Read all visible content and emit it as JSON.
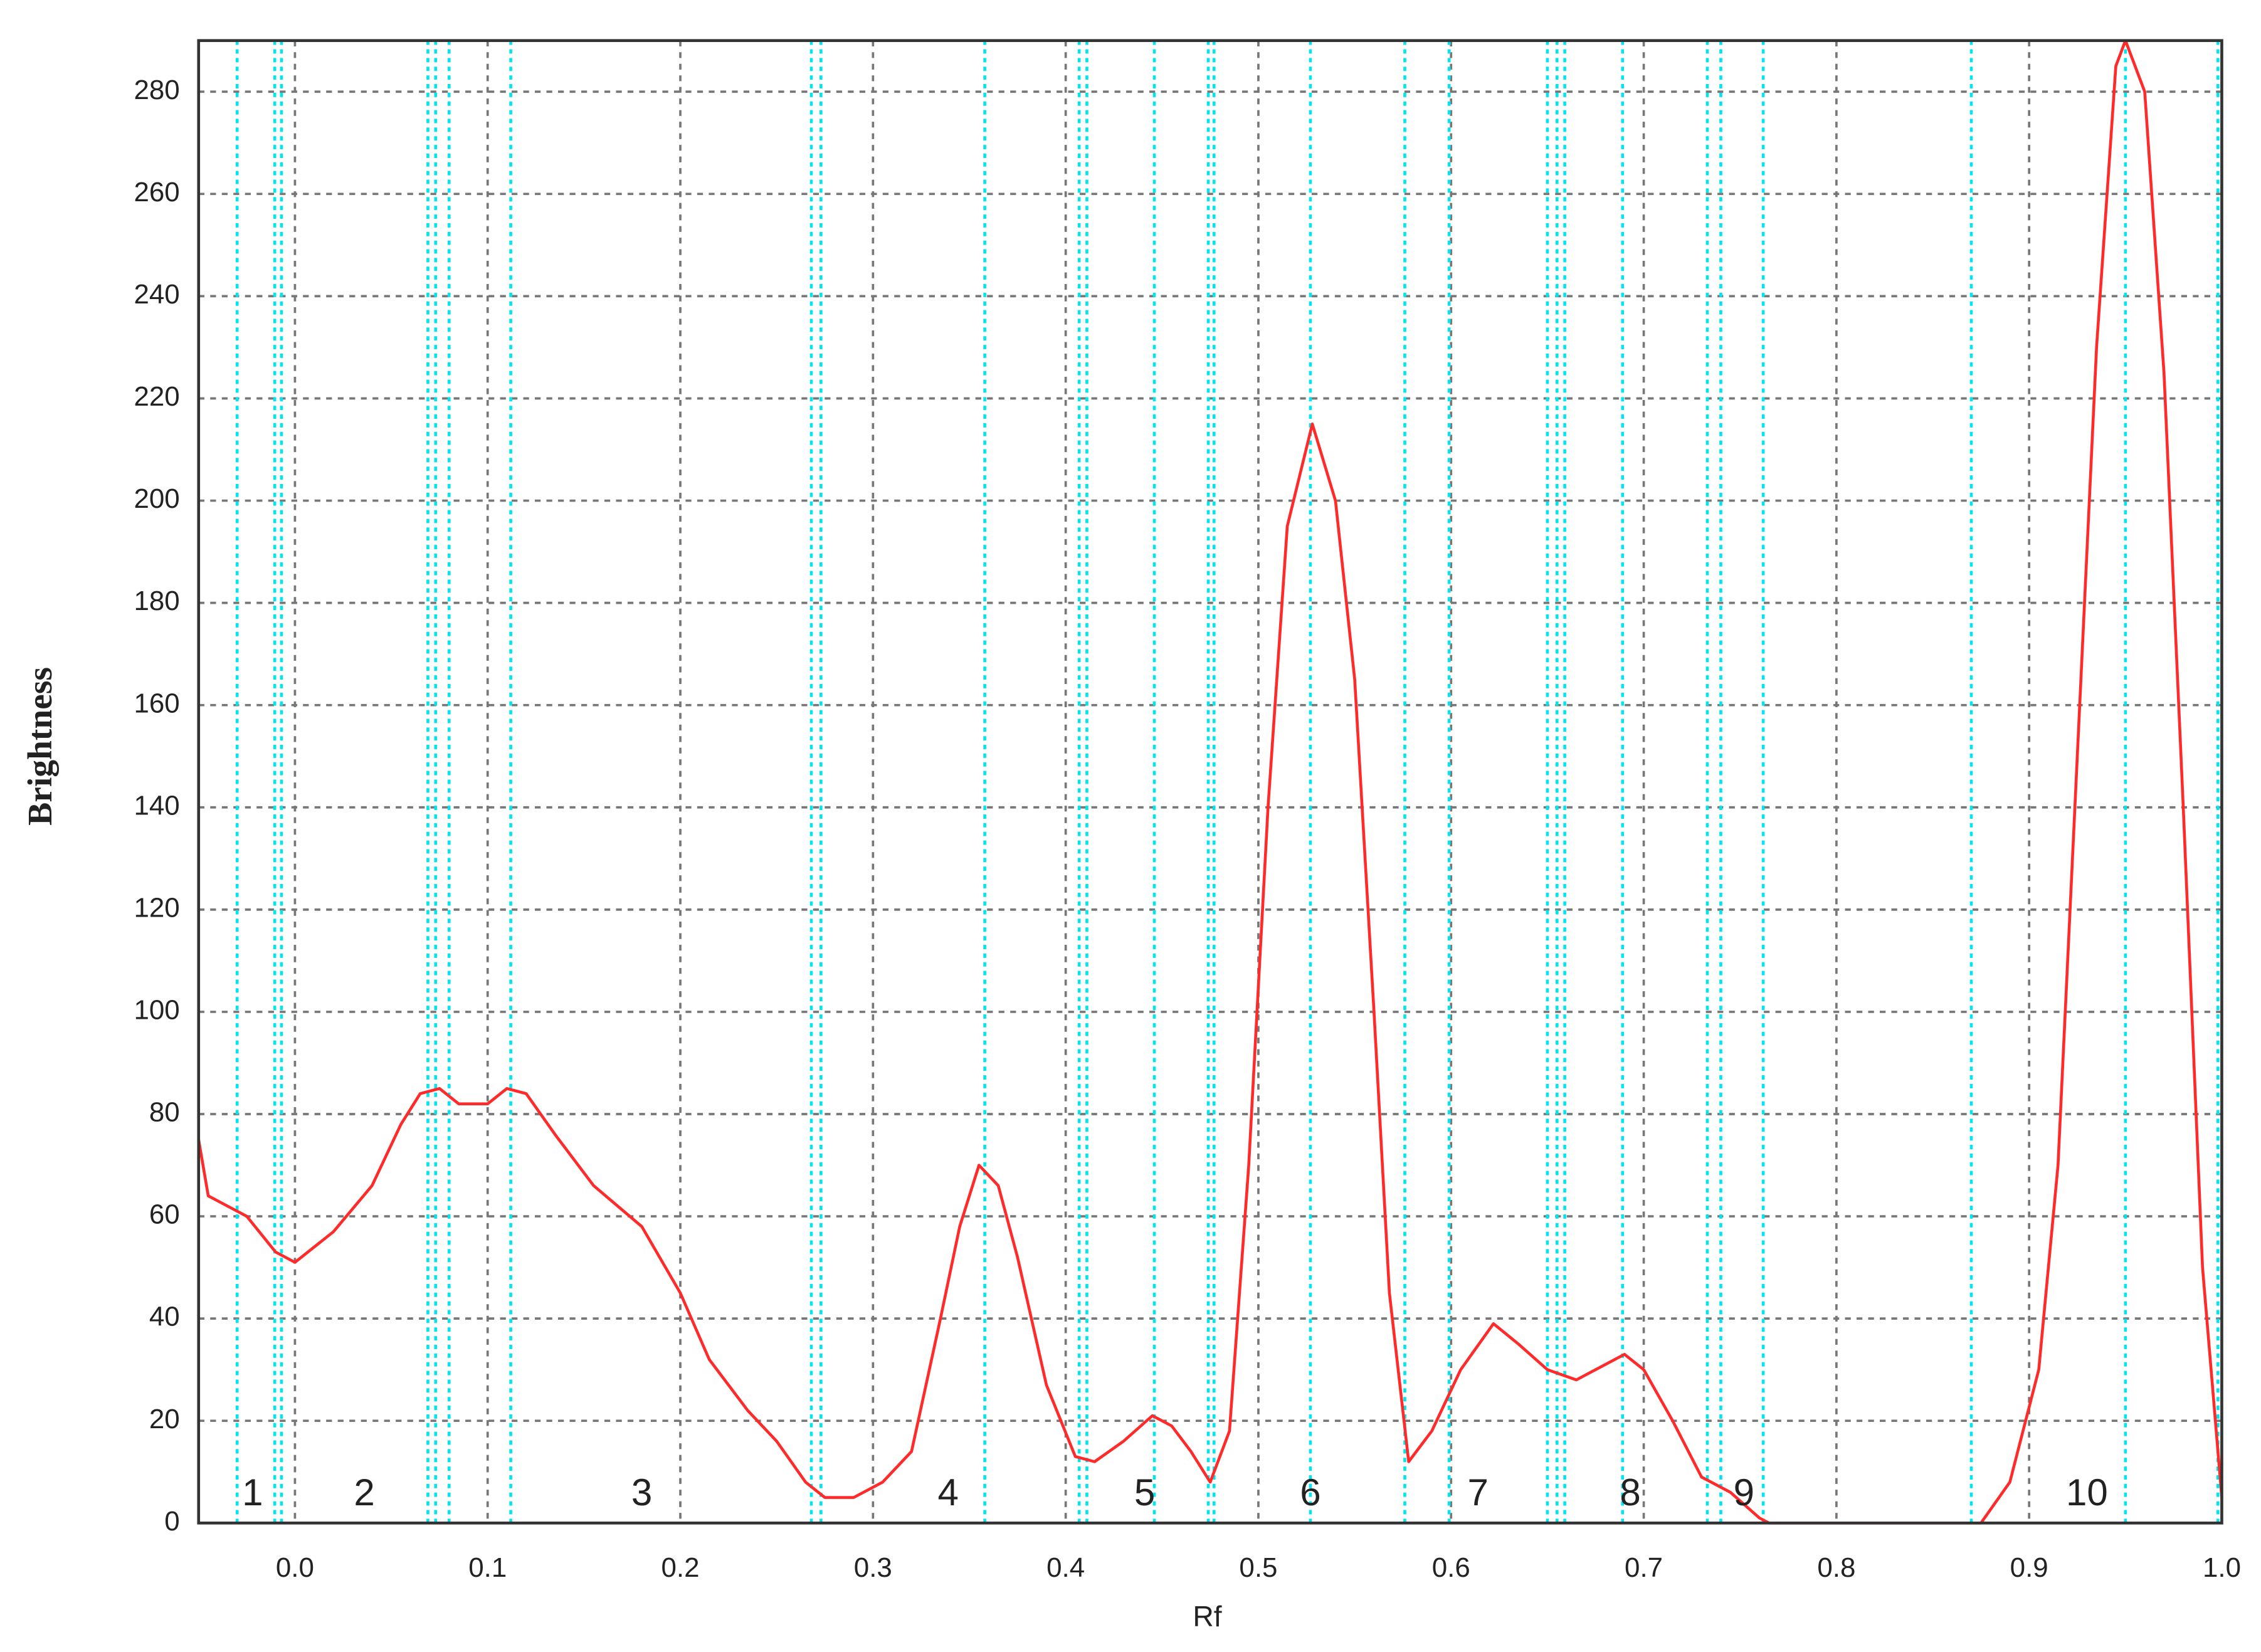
{
  "chart_data": {
    "type": "line",
    "x_label": "Rf",
    "y_label": "Brightness",
    "color": "#ff2a2a",
    "x": [
      -0.05,
      -0.045,
      -0.035,
      -0.025,
      -0.01,
      0.0,
      0.02,
      0.04,
      0.055,
      0.065,
      0.075,
      0.085,
      0.095,
      0.1,
      0.11,
      0.12,
      0.135,
      0.155,
      0.18,
      0.2,
      0.215,
      0.235,
      0.25,
      0.265,
      0.275,
      0.29,
      0.305,
      0.32,
      0.335,
      0.345,
      0.355,
      0.365,
      0.375,
      0.39,
      0.405,
      0.415,
      0.43,
      0.445,
      0.455,
      0.465,
      0.475,
      0.485,
      0.495,
      0.505,
      0.515,
      0.528,
      0.54,
      0.55,
      0.56,
      0.568,
      0.578,
      0.59,
      0.605,
      0.622,
      0.635,
      0.65,
      0.665,
      0.675,
      0.69,
      0.7,
      0.715,
      0.73,
      0.745,
      0.76,
      0.765,
      0.875,
      0.89,
      0.905,
      0.915,
      0.925,
      0.935,
      0.945,
      0.95,
      0.96,
      0.97,
      0.98,
      0.99,
      1.0
    ],
    "values": [
      75,
      64,
      62,
      60,
      53,
      51,
      57,
      66,
      78,
      84,
      85,
      82,
      82,
      82,
      85,
      84,
      76,
      66,
      58,
      45,
      32,
      22,
      16,
      8,
      5,
      5,
      8,
      14,
      40,
      58,
      70,
      66,
      52,
      27,
      13,
      12,
      16,
      21,
      19,
      14,
      8,
      18,
      70,
      140,
      195,
      215,
      200,
      165,
      100,
      45,
      12,
      18,
      30,
      39,
      35,
      30,
      28,
      30,
      33,
      30,
      20,
      9,
      6,
      1,
      0,
      0,
      8,
      30,
      70,
      150,
      230,
      285,
      290,
      280,
      225,
      140,
      50,
      5
    ],
    "zone_lines": {
      "color": "#00e5ee",
      "x": [
        -0.03,
        -0.0105,
        -0.007,
        0.069,
        0.073,
        0.08,
        0.112,
        0.268,
        0.273,
        0.358,
        0.407,
        0.411,
        0.446,
        0.474,
        0.477,
        0.527,
        0.576,
        0.599,
        0.65,
        0.655,
        0.659,
        0.689,
        0.733,
        0.74,
        0.762,
        0.87,
        0.95,
        0.998
      ]
    },
    "zone_labels": [
      {
        "text": "1",
        "x": -0.022
      },
      {
        "text": "2",
        "x": 0.036
      },
      {
        "text": "3",
        "x": 0.18
      },
      {
        "text": "4",
        "x": 0.339
      },
      {
        "text": "5",
        "x": 0.441
      },
      {
        "text": "6",
        "x": 0.527
      },
      {
        "text": "7",
        "x": 0.614
      },
      {
        "text": "8",
        "x": 0.693
      },
      {
        "text": "9",
        "x": 0.752
      },
      {
        "text": "10",
        "x": 0.93
      }
    ],
    "xlim": [
      -0.05,
      1.0
    ],
    "ylim": [
      0,
      290
    ],
    "xticks": [
      {
        "value": 0,
        "label": "0.0"
      },
      0.1,
      0.2,
      0.3,
      0.4,
      0.5,
      0.6,
      0.7,
      0.8,
      0.9,
      {
        "value": 1,
        "label": "1.0"
      }
    ],
    "yticks": [
      0,
      20,
      40,
      60,
      80,
      100,
      120,
      140,
      160,
      180,
      200,
      220,
      240,
      260,
      280
    ],
    "grid": true
  }
}
